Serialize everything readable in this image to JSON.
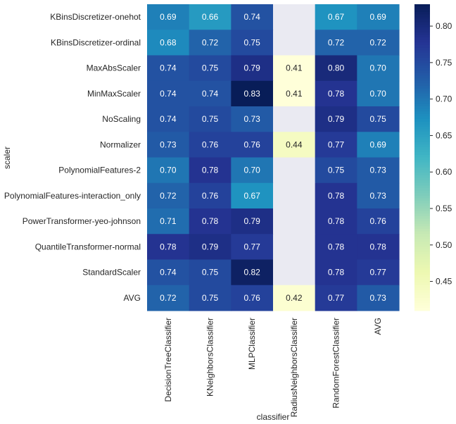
{
  "chart_data": {
    "type": "heatmap",
    "title": "",
    "xlabel": "classifier",
    "ylabel": "scaler",
    "x_categories": [
      "DecisionTreeClassifier",
      "KNeighborsClassifier",
      "MLPClassifier",
      "RadiusNeighborsClassifier",
      "RandomForestClassifier",
      "AVG"
    ],
    "y_categories": [
      "KBinsDiscretizer-onehot",
      "KBinsDiscretizer-ordinal",
      "MaxAbsScaler",
      "MinMaxScaler",
      "NoScaling",
      "Normalizer",
      "PolynomialFeatures-2",
      "PolynomialFeatures-interaction_only",
      "PowerTransformer-yeo-johnson",
      "QuantileTransformer-normal",
      "StandardScaler",
      "AVG"
    ],
    "values": [
      [
        0.69,
        0.66,
        0.74,
        null,
        0.67,
        0.69
      ],
      [
        0.68,
        0.72,
        0.75,
        null,
        0.72,
        0.72
      ],
      [
        0.74,
        0.75,
        0.79,
        0.41,
        0.8,
        0.7
      ],
      [
        0.74,
        0.74,
        0.83,
        0.41,
        0.78,
        0.7
      ],
      [
        0.74,
        0.75,
        0.73,
        null,
        0.79,
        0.75
      ],
      [
        0.73,
        0.76,
        0.76,
        0.44,
        0.77,
        0.69
      ],
      [
        0.7,
        0.78,
        0.7,
        null,
        0.75,
        0.73
      ],
      [
        0.72,
        0.76,
        0.67,
        null,
        0.78,
        0.73
      ],
      [
        0.71,
        0.78,
        0.79,
        null,
        0.78,
        0.76
      ],
      [
        0.78,
        0.79,
        0.77,
        null,
        0.78,
        0.78
      ],
      [
        0.74,
        0.75,
        0.82,
        null,
        0.78,
        0.77
      ],
      [
        0.72,
        0.75,
        0.76,
        0.42,
        0.77,
        0.73
      ]
    ],
    "annotation_format": "0.00",
    "colormap": "YlGnBu",
    "vmin": 0.41,
    "vmax": 0.83,
    "missing_color": "#EAEAF2",
    "colorbar": {
      "ticks": [
        0.45,
        0.5,
        0.55,
        0.6,
        0.65,
        0.7,
        0.75,
        0.8
      ],
      "tick_labels": [
        "0.45",
        "0.50",
        "0.55",
        "0.60",
        "0.65",
        "0.70",
        "0.75",
        "0.80"
      ]
    },
    "grid": false
  }
}
